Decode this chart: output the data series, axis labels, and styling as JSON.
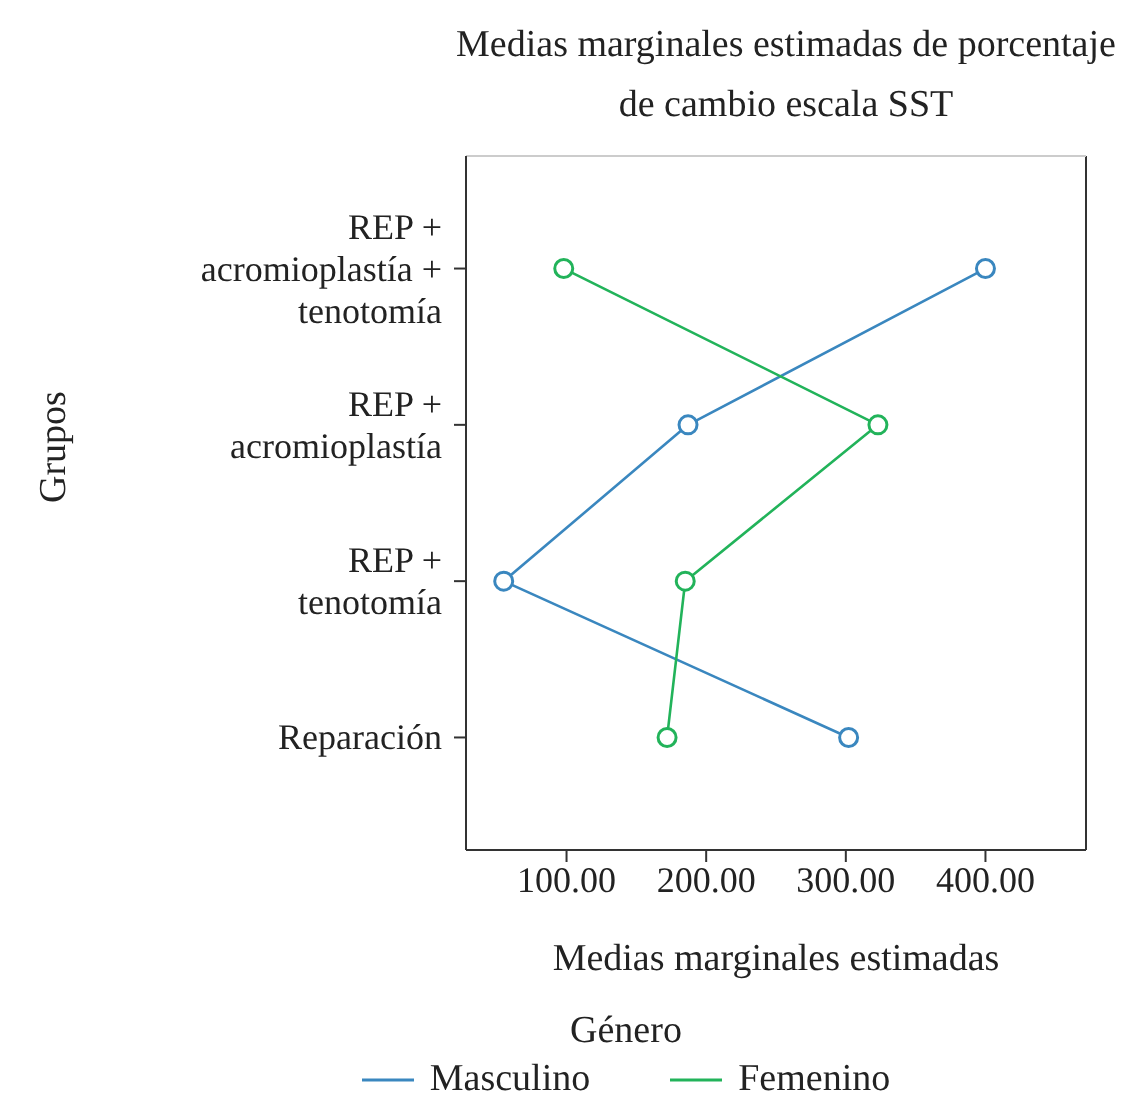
{
  "chart_data": {
    "type": "line",
    "title": "Medias marginales estimadas de porcentaje de cambio escala SST",
    "xlabel": "Medias marginales estimadas",
    "ylabel": "Grupos",
    "legend_title": "Género",
    "orientation": "horizontal",
    "categories": [
      "REP + acromioplastía + tenotomía",
      "REP + acromioplastía",
      "REP + tenotomía",
      "Reparación"
    ],
    "series": [
      {
        "name": "Masculino",
        "color": "#3a87bf",
        "values": [
          400,
          187,
          55,
          302
        ]
      },
      {
        "name": "Femenino",
        "color": "#22b35a",
        "values": [
          98,
          323,
          185,
          172
        ]
      }
    ],
    "xlim": [
      28,
      472
    ],
    "xticks": [
      {
        "value": 100,
        "label": "100.00"
      },
      {
        "value": 200,
        "label": "200.00"
      },
      {
        "value": 300,
        "label": "300.00"
      },
      {
        "value": 400,
        "label": "400.00"
      }
    ],
    "grid": false,
    "legend": "bottom",
    "marker": "circle",
    "line_style": "solid"
  }
}
